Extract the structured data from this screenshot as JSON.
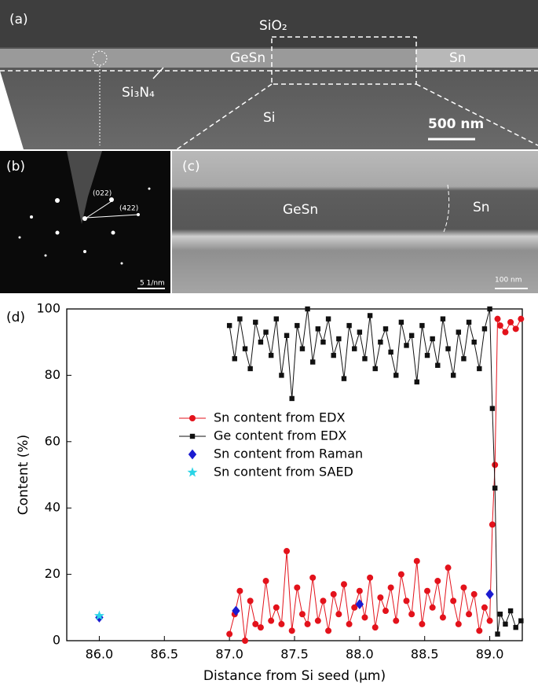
{
  "panels": {
    "a": {
      "label": "(a)",
      "sio2": "SiO₂",
      "gesn": "GeSn",
      "sn": "Sn",
      "si3n4": "Si₃N₄",
      "si": "Si",
      "scale": "500 nm"
    },
    "b": {
      "label": "(b)",
      "hkl1": "(022)",
      "hkl2": "(422)",
      "scale": "5 1/nm"
    },
    "c": {
      "label": "(c)",
      "gesn": "GeSn",
      "sn": "Sn",
      "scale": "100 nm"
    },
    "d": {
      "label": "(d)"
    }
  },
  "chart_data": {
    "type": "scatter",
    "xlabel": "Distance from Si seed (µm)",
    "ylabel": "Content (%)",
    "xlim": [
      85.75,
      89.25
    ],
    "ylim": [
      0,
      100
    ],
    "xticks": [
      {
        "value": 86,
        "label": "86.0"
      },
      {
        "value": 86.5,
        "label": "86.5"
      },
      {
        "value": 87,
        "label": "87.0"
      },
      {
        "value": 87.5,
        "label": "87.5"
      },
      {
        "value": 88,
        "label": "88.0"
      },
      {
        "value": 88.5,
        "label": "88.5"
      },
      {
        "value": 89,
        "label": "89.0"
      }
    ],
    "yticks": [
      0,
      20,
      40,
      60,
      80,
      100
    ],
    "series": [
      {
        "name": "Sn content from EDX",
        "color": "#e3121b",
        "marker": "circle",
        "line": true,
        "x": [
          87.0,
          87.04,
          87.08,
          87.12,
          87.16,
          87.2,
          87.24,
          87.28,
          87.32,
          87.36,
          87.4,
          87.44,
          87.48,
          87.52,
          87.56,
          87.6,
          87.64,
          87.68,
          87.72,
          87.76,
          87.8,
          87.84,
          87.88,
          87.92,
          87.96,
          88.0,
          88.04,
          88.08,
          88.12,
          88.16,
          88.2,
          88.24,
          88.28,
          88.32,
          88.36,
          88.4,
          88.44,
          88.48,
          88.52,
          88.56,
          88.6,
          88.64,
          88.68,
          88.72,
          88.76,
          88.8,
          88.84,
          88.88,
          88.92,
          88.96,
          89.0,
          89.02,
          89.04,
          89.06,
          89.08,
          89.12,
          89.16,
          89.2,
          89.24
        ],
        "values": [
          2,
          8,
          15,
          0,
          12,
          5,
          4,
          18,
          6,
          10,
          5,
          27,
          3,
          16,
          8,
          5,
          19,
          6,
          12,
          3,
          14,
          8,
          17,
          5,
          10,
          15,
          7,
          19,
          4,
          13,
          9,
          16,
          6,
          20,
          12,
          8,
          24,
          5,
          15,
          10,
          18,
          7,
          22,
          12,
          5,
          16,
          8,
          14,
          3,
          10,
          6,
          35,
          53,
          97,
          95,
          93,
          96,
          94,
          97
        ]
      },
      {
        "name": "Ge content  from EDX",
        "color": "#111111",
        "marker": "square",
        "line": true,
        "x": [
          87.0,
          87.04,
          87.08,
          87.12,
          87.16,
          87.2,
          87.24,
          87.28,
          87.32,
          87.36,
          87.4,
          87.44,
          87.48,
          87.52,
          87.56,
          87.6,
          87.64,
          87.68,
          87.72,
          87.76,
          87.8,
          87.84,
          87.88,
          87.92,
          87.96,
          88.0,
          88.04,
          88.08,
          88.12,
          88.16,
          88.2,
          88.24,
          88.28,
          88.32,
          88.36,
          88.4,
          88.44,
          88.48,
          88.52,
          88.56,
          88.6,
          88.64,
          88.68,
          88.72,
          88.76,
          88.8,
          88.84,
          88.88,
          88.92,
          88.96,
          89.0,
          89.02,
          89.04,
          89.06,
          89.08,
          89.12,
          89.16,
          89.2,
          89.24
        ],
        "values": [
          95,
          85,
          97,
          88,
          82,
          96,
          90,
          93,
          86,
          97,
          80,
          92,
          73,
          95,
          88,
          100,
          84,
          94,
          90,
          97,
          86,
          91,
          79,
          95,
          88,
          93,
          85,
          98,
          82,
          90,
          94,
          87,
          80,
          96,
          89,
          92,
          78,
          95,
          86,
          91,
          83,
          97,
          88,
          80,
          93,
          85,
          96,
          90,
          82,
          94,
          100,
          70,
          46,
          2,
          8,
          5,
          9,
          4,
          6
        ]
      },
      {
        "name": "Sn content  from Raman",
        "color": "#1b1bd0",
        "marker": "diamond",
        "line": false,
        "x": [
          86.0,
          87.05,
          88.0,
          89.0
        ],
        "values": [
          7,
          9,
          11,
          14
        ]
      },
      {
        "name": "Sn content  from SAED",
        "color": "#2ad4e6",
        "marker": "star",
        "line": false,
        "x": [
          86.0
        ],
        "values": [
          7.5
        ]
      }
    ]
  }
}
